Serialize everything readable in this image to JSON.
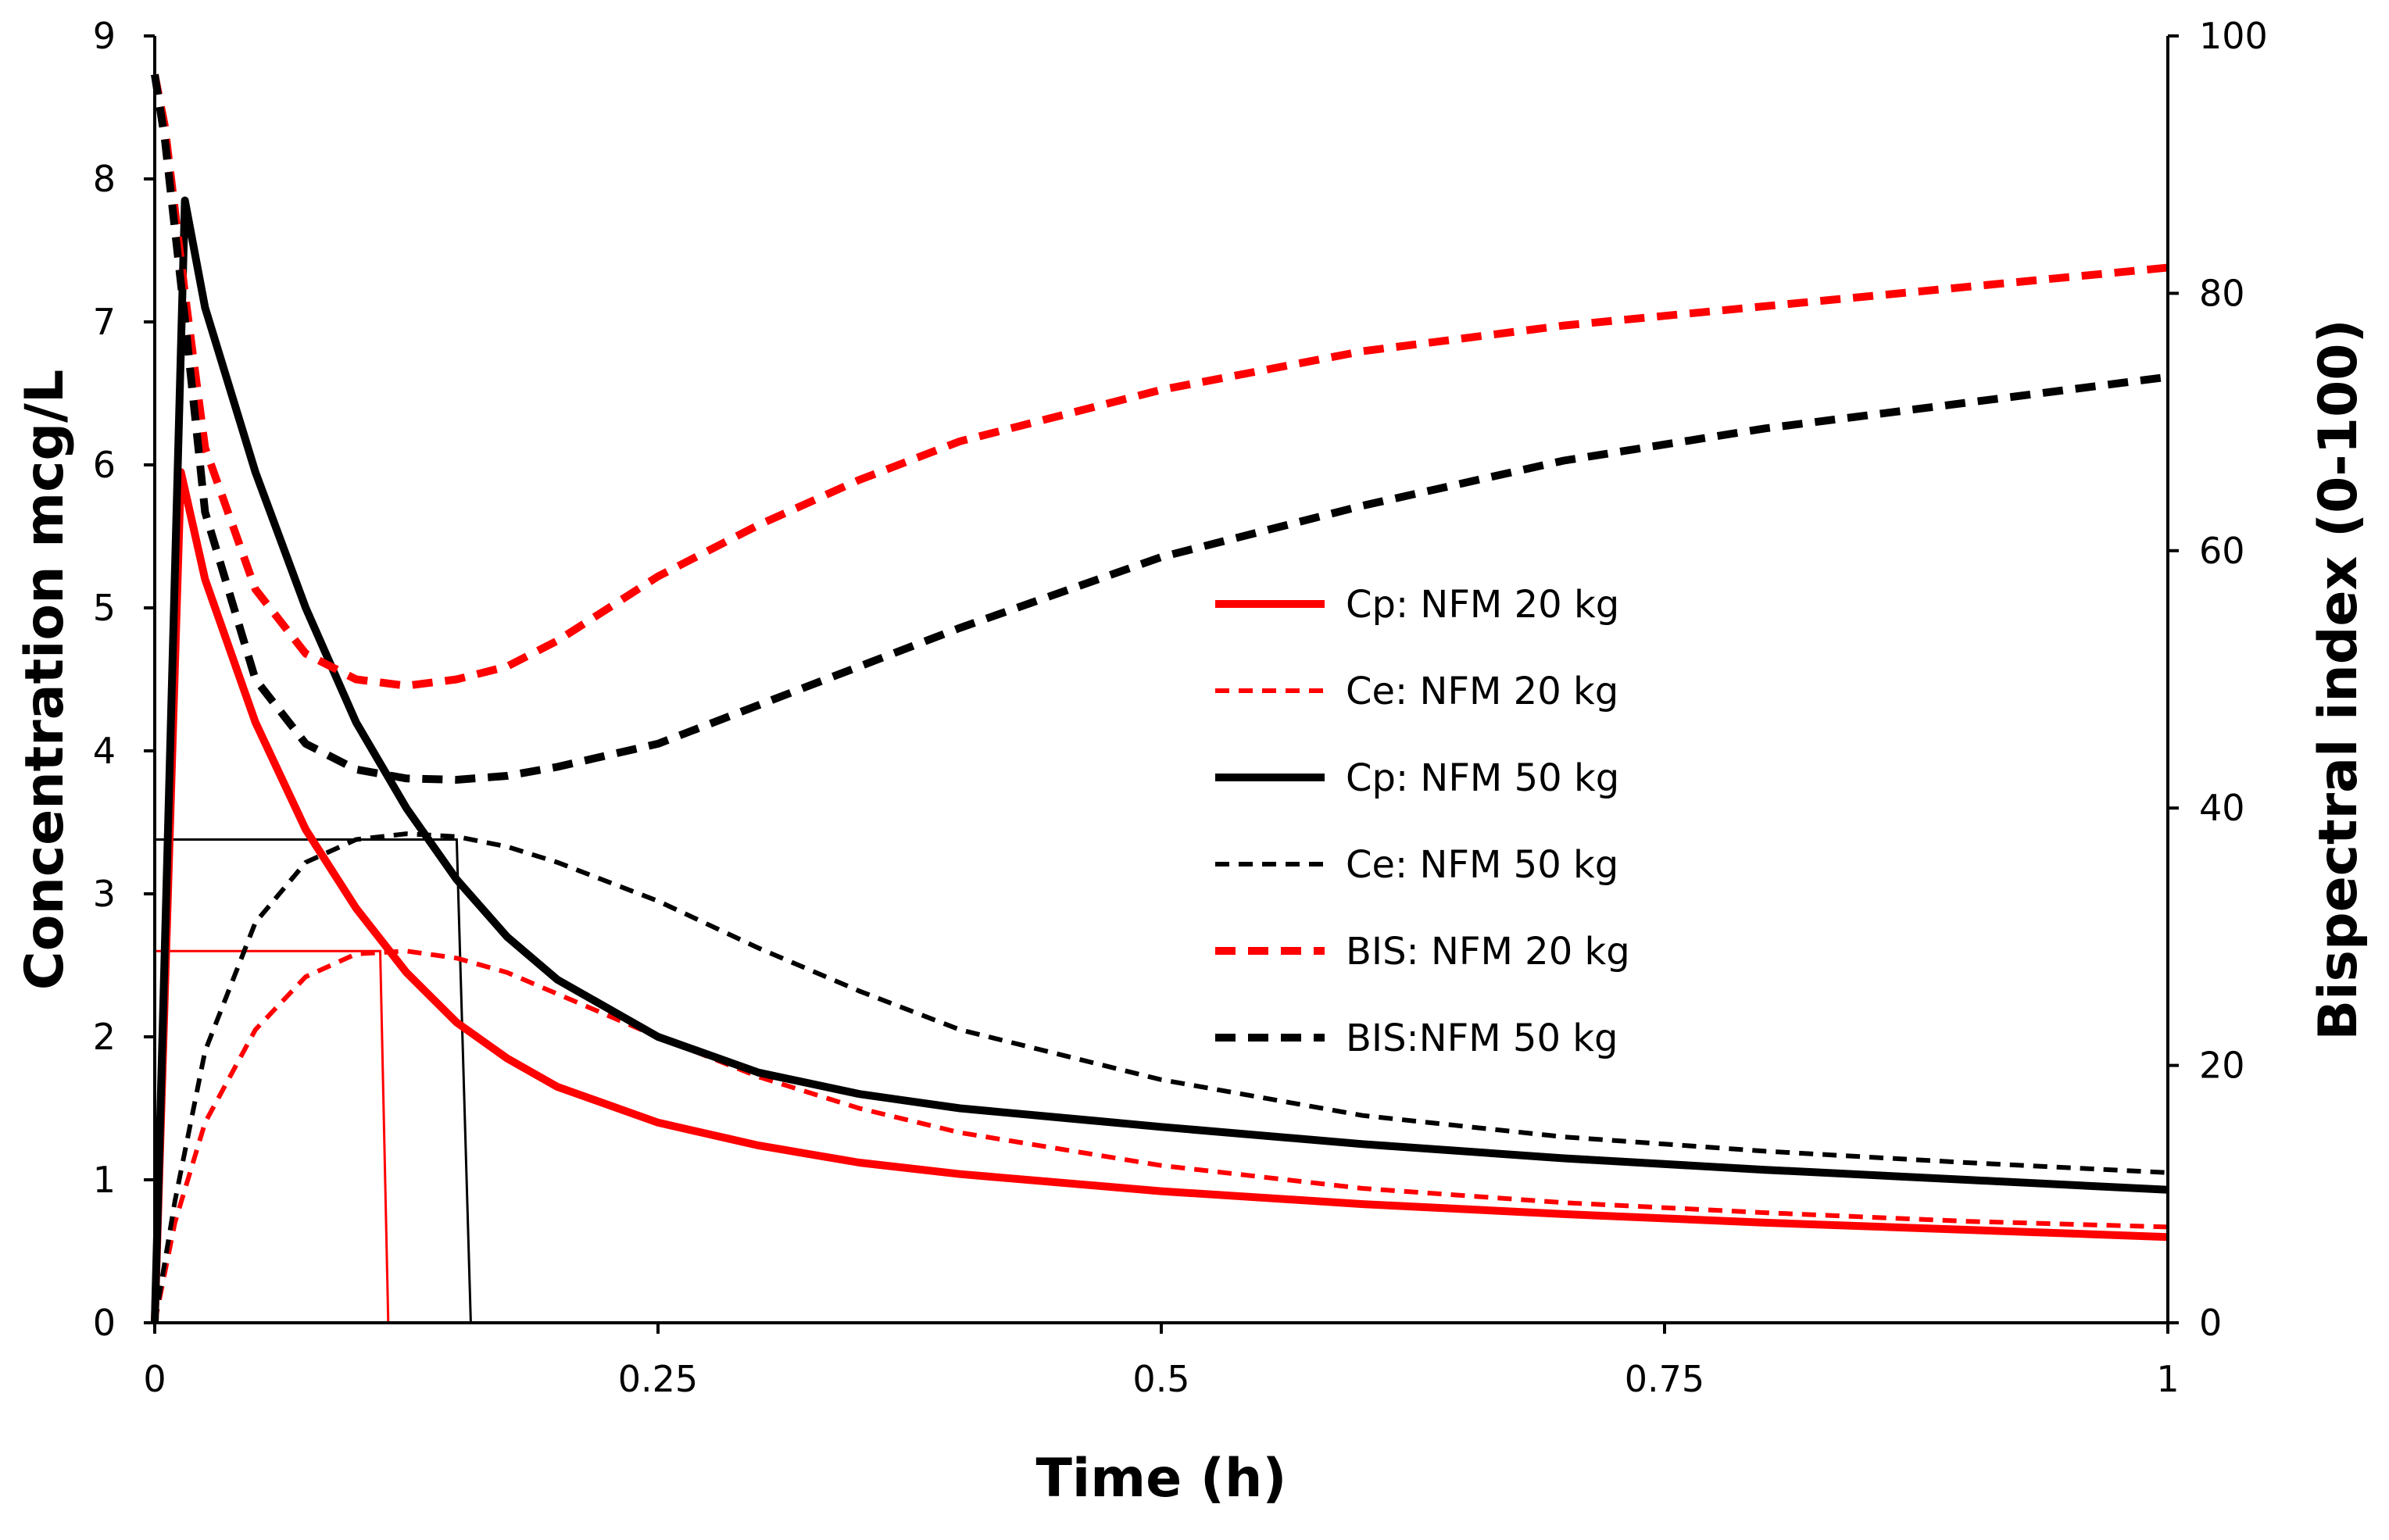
{
  "chart_data": {
    "type": "line",
    "xlabel": "Time (h)",
    "ylabel": "Concentration mcg/L",
    "y2label": "Bispectral index (0-100)",
    "xlim": [
      0,
      1
    ],
    "ylim": [
      0,
      9
    ],
    "y2lim": [
      0,
      100
    ],
    "x_ticks": [
      0,
      0.25,
      0.5,
      0.75,
      1
    ],
    "x_tick_labels": [
      "0",
      "0.25",
      "0.5",
      "0.75",
      "1"
    ],
    "y_ticks": [
      0,
      1,
      2,
      3,
      4,
      5,
      6,
      7,
      8,
      9
    ],
    "y_tick_labels": [
      "0",
      "1",
      "2",
      "3",
      "4",
      "5",
      "6",
      "7",
      "8",
      "9"
    ],
    "y2_ticks": [
      0,
      20,
      40,
      60,
      80,
      100
    ],
    "y2_tick_labels": [
      "0",
      "20",
      "40",
      "60",
      "80",
      "100"
    ],
    "grid": false,
    "legend_position": "center-right",
    "series": [
      {
        "name": "Cp: NFM 20 kg",
        "axis": "left",
        "color": "#ff0000",
        "style": "solid",
        "weight": "thick",
        "x": [
          0,
          0.013,
          0.025,
          0.05,
          0.075,
          0.1,
          0.125,
          0.15,
          0.175,
          0.2,
          0.25,
          0.3,
          0.35,
          0.4,
          0.5,
          0.6,
          0.7,
          0.8,
          0.9,
          1.0
        ],
        "y": [
          0,
          5.95,
          5.2,
          4.2,
          3.45,
          2.9,
          2.45,
          2.1,
          1.85,
          1.65,
          1.4,
          1.24,
          1.12,
          1.04,
          0.92,
          0.83,
          0.76,
          0.7,
          0.65,
          0.6
        ]
      },
      {
        "name": "Ce: NFM 20 kg",
        "axis": "left",
        "color": "#ff0000",
        "style": "dashed",
        "weight": "thin",
        "x": [
          0,
          0.01,
          0.025,
          0.05,
          0.075,
          0.1,
          0.125,
          0.15,
          0.175,
          0.2,
          0.25,
          0.3,
          0.35,
          0.4,
          0.5,
          0.6,
          0.7,
          0.8,
          0.9,
          1.0
        ],
        "y": [
          0,
          0.7,
          1.4,
          2.05,
          2.42,
          2.58,
          2.6,
          2.55,
          2.45,
          2.3,
          2.0,
          1.72,
          1.5,
          1.33,
          1.1,
          0.94,
          0.84,
          0.77,
          0.71,
          0.67
        ]
      },
      {
        "name": "Cp: NFM 50 kg",
        "axis": "left",
        "color": "#000000",
        "style": "solid",
        "weight": "thick",
        "x": [
          0,
          0.015,
          0.025,
          0.05,
          0.075,
          0.1,
          0.125,
          0.15,
          0.175,
          0.2,
          0.25,
          0.3,
          0.35,
          0.4,
          0.5,
          0.6,
          0.7,
          0.8,
          0.9,
          1.0
        ],
        "y": [
          0,
          7.85,
          7.1,
          5.95,
          5.0,
          4.2,
          3.6,
          3.1,
          2.7,
          2.4,
          2.0,
          1.75,
          1.6,
          1.5,
          1.37,
          1.25,
          1.15,
          1.07,
          1.0,
          0.93
        ]
      },
      {
        "name": "Ce: NFM 50 kg",
        "axis": "left",
        "color": "#000000",
        "style": "dashed",
        "weight": "thin",
        "x": [
          0,
          0.01,
          0.025,
          0.05,
          0.075,
          0.1,
          0.125,
          0.15,
          0.175,
          0.2,
          0.25,
          0.3,
          0.35,
          0.4,
          0.5,
          0.6,
          0.7,
          0.8,
          0.9,
          1.0
        ],
        "y": [
          0,
          0.85,
          1.9,
          2.8,
          3.22,
          3.38,
          3.42,
          3.4,
          3.33,
          3.22,
          2.95,
          2.62,
          2.32,
          2.05,
          1.7,
          1.45,
          1.3,
          1.2,
          1.12,
          1.05
        ]
      },
      {
        "name": "BIS: NFM 20 kg",
        "axis": "right",
        "color": "#ff0000",
        "style": "dashed",
        "weight": "thick",
        "x": [
          0,
          0.005,
          0.015,
          0.025,
          0.05,
          0.075,
          0.1,
          0.125,
          0.15,
          0.175,
          0.2,
          0.25,
          0.3,
          0.35,
          0.4,
          0.5,
          0.6,
          0.7,
          0.8,
          0.9,
          1.0
        ],
        "y": [
          97,
          93,
          80,
          68,
          57,
          52,
          50,
          49.5,
          50,
          51,
          53,
          58,
          62,
          65.5,
          68.5,
          72.5,
          75.5,
          77.5,
          79,
          80.5,
          82
        ]
      },
      {
        "name": "BIS:NFM 50 kg",
        "axis": "right",
        "color": "#000000",
        "style": "dashed",
        "weight": "thick",
        "x": [
          0,
          0.005,
          0.015,
          0.025,
          0.05,
          0.075,
          0.1,
          0.125,
          0.15,
          0.175,
          0.2,
          0.25,
          0.3,
          0.35,
          0.4,
          0.5,
          0.6,
          0.7,
          0.8,
          0.9,
          1.0
        ],
        "y": [
          97,
          92,
          78,
          63,
          50,
          45,
          43,
          42.3,
          42.2,
          42.5,
          43.2,
          45,
          48,
          51,
          54,
          59.5,
          63.5,
          67,
          69.5,
          71.5,
          73.5
        ]
      }
    ],
    "reference_lines": [
      {
        "color": "#ff0000",
        "points": [
          [
            0,
            2.6
          ],
          [
            0.112,
            2.6
          ],
          [
            0.116,
            0
          ]
        ]
      },
      {
        "color": "#000000",
        "points": [
          [
            0,
            3.38
          ],
          [
            0.15,
            3.38
          ],
          [
            0.157,
            0
          ]
        ]
      }
    ]
  }
}
